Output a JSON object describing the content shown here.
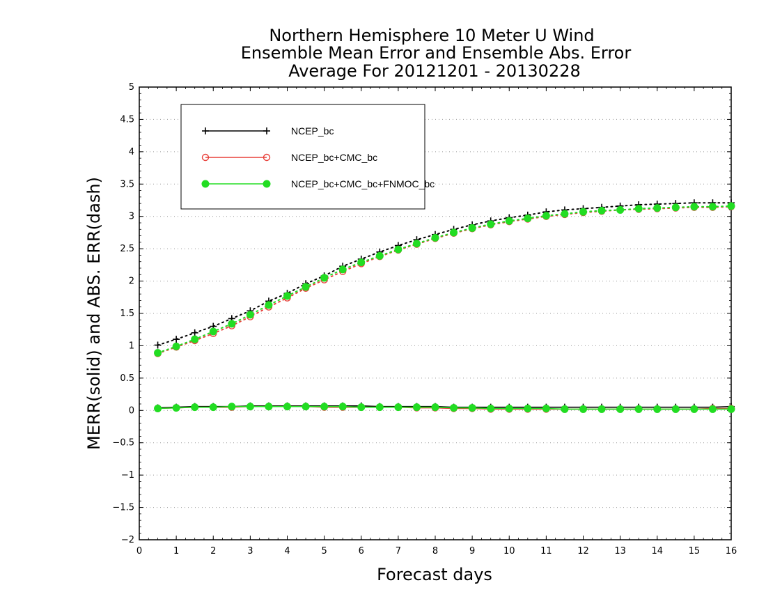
{
  "chart_data": {
    "type": "line",
    "title_lines": [
      "Northern Hemisphere 10 Meter U Wind",
      "Ensemble Mean Error and Ensemble Abs. Error",
      "Average For 20121201 - 20130228"
    ],
    "xlabel": "Forecast days",
    "ylabel": "MERR(solid) and ABS. ERR(dash)",
    "xlim": [
      0,
      16
    ],
    "ylim": [
      -2,
      5
    ],
    "x_ticks": [
      "0",
      "1",
      "2",
      "3",
      "4",
      "5",
      "6",
      "7",
      "8",
      "9",
      "10",
      "11",
      "12",
      "13",
      "14",
      "15",
      "16"
    ],
    "y_ticks": [
      "−2",
      "−1.5",
      "−1",
      "−0.5",
      "0",
      "0.5",
      "1",
      "1.5",
      "2",
      "2.5",
      "3",
      "3.5",
      "4",
      "4.5",
      "5"
    ],
    "y_tick_values": [
      -2,
      -1.5,
      -1,
      -0.5,
      0,
      0.5,
      1,
      1.5,
      2,
      2.5,
      3,
      3.5,
      4,
      4.5,
      5
    ],
    "grid": "horizontal dotted",
    "legend_position": "top-left",
    "x": [
      0.5,
      1.0,
      1.5,
      2.0,
      2.5,
      3.0,
      3.5,
      4.0,
      4.5,
      5.0,
      5.5,
      6.0,
      6.5,
      7.0,
      7.5,
      8.0,
      8.5,
      9.0,
      9.5,
      10.0,
      10.5,
      11.0,
      11.5,
      12.0,
      12.5,
      13.0,
      13.5,
      14.0,
      14.5,
      15.0,
      15.5,
      16.0
    ],
    "series": [
      {
        "name": "NCEP_bc",
        "color": "#000000",
        "marker": "plus",
        "merr": [
          0.04,
          0.05,
          0.06,
          0.06,
          0.06,
          0.07,
          0.07,
          0.07,
          0.07,
          0.07,
          0.07,
          0.07,
          0.06,
          0.06,
          0.06,
          0.06,
          0.05,
          0.05,
          0.05,
          0.05,
          0.05,
          0.05,
          0.05,
          0.05,
          0.05,
          0.05,
          0.05,
          0.05,
          0.05,
          0.05,
          0.05,
          0.06
        ],
        "abs_err": [
          1.01,
          1.1,
          1.2,
          1.3,
          1.42,
          1.54,
          1.69,
          1.81,
          1.96,
          2.08,
          2.23,
          2.34,
          2.45,
          2.55,
          2.64,
          2.72,
          2.8,
          2.87,
          2.93,
          2.98,
          3.02,
          3.07,
          3.1,
          3.12,
          3.14,
          3.16,
          3.18,
          3.19,
          3.2,
          3.21,
          3.21,
          3.21
        ]
      },
      {
        "name": "NCEP_bc+CMC_bc",
        "color": "#e8403a",
        "marker": "open-circle",
        "merr": [
          0.03,
          0.04,
          0.05,
          0.05,
          0.05,
          0.06,
          0.06,
          0.06,
          0.06,
          0.05,
          0.05,
          0.05,
          0.05,
          0.05,
          0.04,
          0.04,
          0.03,
          0.03,
          0.02,
          0.02,
          0.02,
          0.02,
          0.02,
          0.02,
          0.02,
          0.02,
          0.02,
          0.02,
          0.02,
          0.02,
          0.03,
          0.03
        ],
        "abs_err": [
          0.88,
          0.98,
          1.08,
          1.19,
          1.31,
          1.45,
          1.6,
          1.74,
          1.89,
          2.02,
          2.15,
          2.27,
          2.38,
          2.48,
          2.57,
          2.66,
          2.74,
          2.81,
          2.87,
          2.92,
          2.96,
          3.0,
          3.03,
          3.06,
          3.08,
          3.1,
          3.11,
          3.12,
          3.13,
          3.14,
          3.14,
          3.15
        ]
      },
      {
        "name": "NCEP_bc+CMC_bc+FNMOC_bc",
        "color": "#22dd22",
        "marker": "filled-circle",
        "merr": [
          0.03,
          0.04,
          0.05,
          0.05,
          0.06,
          0.06,
          0.06,
          0.06,
          0.06,
          0.06,
          0.06,
          0.05,
          0.05,
          0.05,
          0.05,
          0.05,
          0.04,
          0.04,
          0.03,
          0.03,
          0.03,
          0.03,
          0.02,
          0.02,
          0.02,
          0.02,
          0.02,
          0.02,
          0.02,
          0.02,
          0.02,
          0.02
        ],
        "abs_err": [
          0.89,
          0.99,
          1.1,
          1.22,
          1.34,
          1.48,
          1.63,
          1.77,
          1.91,
          2.05,
          2.18,
          2.29,
          2.39,
          2.49,
          2.58,
          2.67,
          2.75,
          2.82,
          2.88,
          2.93,
          2.97,
          3.01,
          3.04,
          3.07,
          3.09,
          3.1,
          3.12,
          3.13,
          3.14,
          3.15,
          3.15,
          3.16
        ]
      }
    ]
  }
}
